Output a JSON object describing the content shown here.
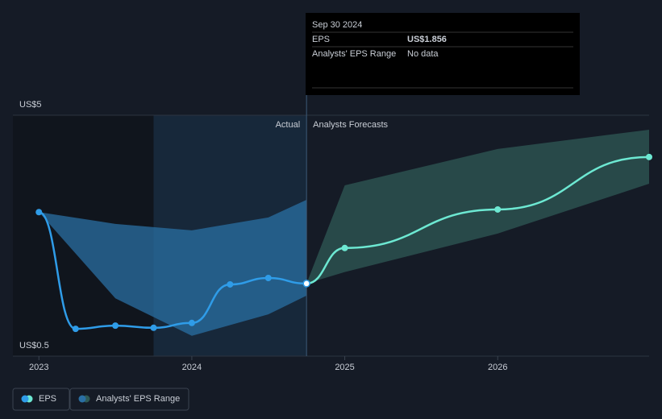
{
  "chart_data": {
    "type": "line",
    "xlim": [
      2022.83,
      2026.99
    ],
    "xticks": [
      2023,
      2024,
      2025,
      2026
    ],
    "ylim": [
      0.5,
      5
    ],
    "yticks": [
      {
        "value": 5,
        "label": "US$5"
      },
      {
        "value": 0.5,
        "label": "US$0.5"
      }
    ],
    "annotations": [
      "Actual",
      "Analysts Forecasts"
    ],
    "series": [
      {
        "name": "EPS",
        "color": "#2f9ce8",
        "actual": {
          "x": [
            2023.0,
            2023.24,
            2023.5,
            2023.75,
            2024.0,
            2024.25,
            2024.5,
            2024.75
          ],
          "values": [
            3.19,
            1.01,
            1.07,
            1.03,
            1.12,
            1.84,
            1.96,
            1.856
          ]
        },
        "forecast": {
          "color": "#6de8d2",
          "x": [
            2024.75,
            2025.0,
            2026.0,
            2026.99
          ],
          "values": [
            1.856,
            2.52,
            3.24,
            4.22
          ]
        }
      },
      {
        "name": "Analysts' EPS Range",
        "color": "#2f6e8a",
        "pieces": [
          {
            "color": "#2a6fa3",
            "x": [
              2023.0,
              2023.5,
              2024.0,
              2024.5,
              2024.75
            ],
            "low": [
              3.19,
              1.58,
              0.88,
              1.28,
              1.63
            ],
            "high": [
              3.19,
              2.97,
              2.85,
              3.09,
              3.42
            ]
          },
          {
            "color": "#2f5a55",
            "x": [
              2024.75,
              2025.0,
              2026.0,
              2026.99
            ],
            "low": [
              1.856,
              2.07,
              2.79,
              3.72
            ],
            "high": [
              1.856,
              3.69,
              4.37,
              4.73
            ]
          }
        ]
      }
    ],
    "tooltip": {
      "date": "Sep 30 2024",
      "rows": [
        {
          "label": "EPS",
          "value": 1.856,
          "value_label": "US$1.856"
        },
        {
          "label": "Analysts' EPS Range",
          "value_label": "No data"
        }
      ]
    }
  }
}
